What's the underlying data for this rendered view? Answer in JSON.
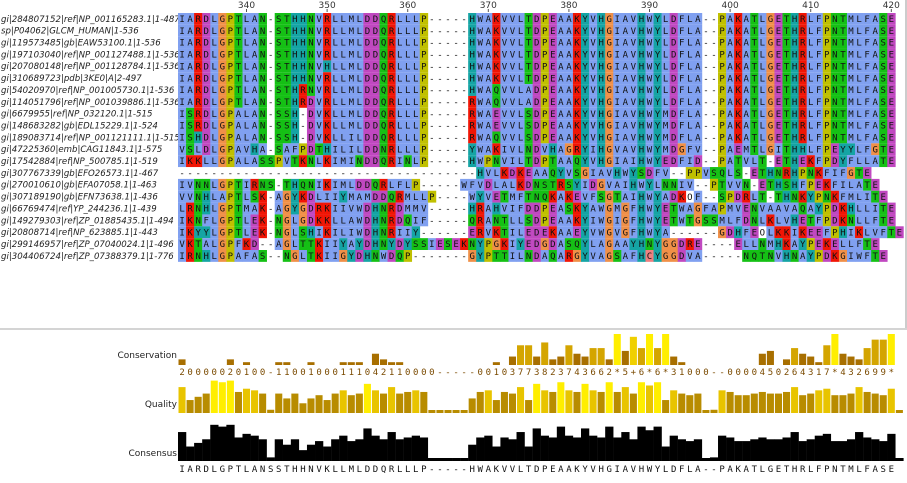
{
  "alignment": {
    "ruler_start": 332,
    "ruler_labels": [
      "340",
      "350",
      "360",
      "370",
      "380",
      "390",
      "400",
      "410",
      "420"
    ],
    "sequences": [
      {
        "id": "gi|284807152|ref|NP_001165283.1|1-487",
        "seq": "IARDLGPTLAN-STHHNVRLLMLDDQRLLLP-----HWAKVVLTDPEAAKYVHGIAVHWYLDFLA--PAKATLGETHRLFPNTMLFASE"
      },
      {
        "id": "sp|P04062|GLCM_HUMAN|1-536",
        "seq": "IARDLGPTLAN-STHHNVRLLMLDDQRLLLP-----HWAKVVLTDPEAAKYVHGIAVHWYLDFLA--PAKATLGETHRLFPNTMLFASE"
      },
      {
        "id": "gi|119573485|gb|EAW53100.1|1-536",
        "seq": "IARDLGPTLAN-STHHNVRLLMLDDQRLLLP-----HWAKVVLTDPEAAKYVHGIAVHWYLDFLA--PAKATLGETHRLFPNTMLFASE"
      },
      {
        "id": "gi|197103040|ref|NP_001127488.1|1-536",
        "seq": "IARDLGPTLAN-STHHNVRLLMLDDQRLLLP-----HWAKVVLTDPEAAKYVHGIAVHWYLDFLA--PAKATLGETHRLFPNTMLFASE"
      },
      {
        "id": "gi|207080148|ref|NP_001128784.1|1-536",
        "seq": "IARDLGPTLAN-STHHNVHLLMLDDQRLLLP-----HWAKVVLTDPEAAKYVHGIAVHWYLDFLA--PAKATLGETHRLFPNTMLFASE"
      },
      {
        "id": "gi|310689723|pdb|3KE0|A|2-497",
        "seq": "IARDLGPTLAN-STHHNVRLLMLDDQRLLLP-----HWAKVVLTDPEAAKYVHGIAVHWYLDFLA--PAKATLGETHRLFPNTMLFASE"
      },
      {
        "id": "gi|54020970|ref|NP_001005730.1|1-536",
        "seq": "IARDLGPTLAN-STHRNVRLLMLDDQRLLLP-----HWAQVVLADPEAAKYVHGIAVHWYLDFLA--PAKATLGETHRLFPNTMLFASE"
      },
      {
        "id": "gi|114051796|ref|NP_001039886.1|1-536",
        "seq": "IARDLGPTLAN-STHRDVRLLMLDDQRLLLP-----RWAQVVLADPEAAKYVHGIAVHWYLDFLA--PAKATLGETHRLFPNTMLFASE"
      },
      {
        "id": "gi|6679955|ref|NP_032120.1|1-515",
        "seq": "ISRDLGPALAN-SSH-DVKLLMLDDQRLLLP-----RWAEVVLSDPEAAKYVHGIAVHWYMDFLA--PAKATLGETHRLFPNTMLFASE"
      },
      {
        "id": "gi|148683282|gb|EDL15229.1|1-524",
        "seq": "ISRDLGPALAN-SSH-DVKLLMLDDQRLLLP-----RWAEVVLSDPEAAKYVHGIAVHWYMDFLA--PAKATLGETHRLFPNTMLFASE"
      },
      {
        "id": "gi|189083714|ref|NP_001121111.1|1-515",
        "seq": "ISHDLGPALAN-SSH-DVKLLILDDQRLLLP-----RWAQVVLSDPEAAKYVHGIAVHWYMDFLA--PAKATLGETHRLFPNTMLFASE"
      },
      {
        "id": "gi|47225360|emb|CAG11843.1|1-575",
        "seq": "VSLDLGPAVHA-SAFPDTHILILDDNRLLLP-----YWAKIVLNDVHAGRYIHGVAVHWYMDGFV--PAEMTLGITHHLFPEYYLFGTE"
      },
      {
        "id": "gi|17542884|ref|NP_500785.1|1-519",
        "seq": "IKKLLGPALASSPVTKNLKIMINDDQRINLP-----HWPNVILTDPTAAQYVHGIAIHWYEDFID--PATVLT-ETHEKFPDYFLLATE"
      },
      {
        "id": "gi|307767339|gb|EFO26573.1|1-467",
        "seq": "-------------------------------------HVLKDKEAAQYVSGIAVHWYSDFV--PPVSQLS-ETHNRHPNKFIFGTE"
      },
      {
        "id": "gi|270010610|gb|EFA07058.1|1-463",
        "seq": "IVNNLGPTIRNS-THQNIKIMLDDQRLFLP-----WFVDLALKDNSTRSYIDGVAIHWYLNNIV--PTVVN-ETHSHFPEKFILATE"
      },
      {
        "id": "gi|307189190|gb|EFN73638.1|1-436",
        "seq": "VVNHLAPTLSK-AGYKDLIIYMAMDDQRMLLP----WYVETMFTNQKAKEVFSGTAIHWYADKOF--SPDRLT-THNKYPNKFMLITE"
      },
      {
        "id": "gi|66769474|ref|YP_244236.1|1-439",
        "seq": "LRNHLGPTMAK-AGYGDRKIIVWDHNRDMMV-----HRAHVIFDDPEASKYAWGMGFHWYETWAGFAPMVENVAAVAQAYPDKHLLITE"
      },
      {
        "id": "gi|149279303|ref|ZP_01885435.1|1-494",
        "seq": "IKNFLGPTLEK-NGLGDKKLLAWDHNRDQIF-----QRANTLLSDPEAAKYIWGIGFHWYETWTGSSMLFDNLKLVHETFPDKNLLFTE"
      },
      {
        "id": "gi|20808714|ref|NP_623885.1|1-443",
        "seq": "IKYYLGPTLEK-NGLSHIKILIWDHNRIIY------ERVKTILEDEKAAEYVWGVGFHWYA------GDHFEOLKKIKEEFPHIKLVFTE"
      },
      {
        "id": "gi|299146957|ref|ZP_07040024.1|1-496",
        "seq": "VKTALGPFKD--AGLTTKIIYAYDHNYDYSSIESEKNYPGKIYEDGDASQYLAGAAYHNYGGDRE----ELLNMHKAYPEKELLFTE"
      },
      {
        "id": "gi|304406724|ref|ZP_07388379.1|1-776",
        "seq": "IRNHLGPAFAS--NGLTKIIGYDHNWDQP-------GYPTTILNDAQARGYVAGSAFHCYGGDVA-----NQTNVHNAYPDKGIWFTE"
      }
    ]
  },
  "annotations": {
    "conservation_label": "Conservation",
    "quality_label": "Quality",
    "consensus_label": "Consensus",
    "conservation_scores": "20000020100-11001000111042110000-----00103773823743662*5+6*6*31000--0000450264317*432699*",
    "consensus_sequence": "IARDLGPTLANSSTHHNVKLLMLDDQRLLLP-----HWAKVVLTDPEAAKYVHGIAVHWYLDFLA--PAKATLGETHRLFPNTMLFASE"
  }
}
